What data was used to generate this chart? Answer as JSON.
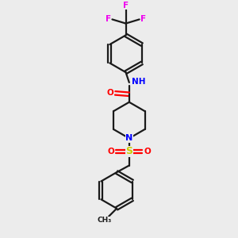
{
  "background_color": "#ececec",
  "bond_color": "#1a1a1a",
  "nitrogen_color": "#0000ff",
  "oxygen_color": "#ff0000",
  "sulfur_color": "#cccc00",
  "fluorine_color": "#ee00ee",
  "line_width": 1.6,
  "fig_width": 3.0,
  "fig_height": 3.0,
  "dpi": 100,
  "xlim": [
    0,
    10
  ],
  "ylim": [
    0,
    10
  ]
}
